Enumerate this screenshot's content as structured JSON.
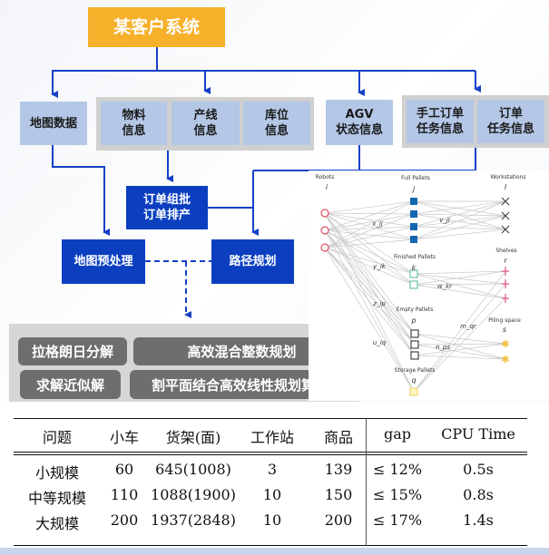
{
  "title": "某客户系统",
  "colors": {
    "title_bg": "#f6b02a",
    "light_box": "#b4c7e7",
    "dark_box": "#0b3fc0",
    "arrow": "#1540c8",
    "button": "#6e6e6e"
  },
  "sources": {
    "map_data": "地图数据",
    "material": "物料\n信息",
    "production_line": "产线\n信息",
    "storage_location": "库位\n信息",
    "agv": "AGV\n状态信息",
    "manual_order": "手工订单\n任务信息",
    "order": "订单\n任务信息"
  },
  "process": {
    "order_batching": "订单组批\n订单排产",
    "map_preprocess": "地图预处理",
    "path_planning": "路径规划"
  },
  "methods": [
    "拉格朗日分解",
    "高效混合整数规划",
    "求解近似解",
    "割平面结合高效线性规划算法"
  ],
  "network": {
    "groups": {
      "robots": {
        "label": "Robots",
        "index": "i"
      },
      "full_pallets": {
        "label": "Full Pallets",
        "index": "j"
      },
      "workstations": {
        "label": "Workstations",
        "index": "l"
      },
      "finished_pallets": {
        "label": "Finished Pallets",
        "index": "k"
      },
      "shelves": {
        "label": "Shelves",
        "index": "r"
      },
      "empty_pallets": {
        "label": "Empty Pallets",
        "index": "p"
      },
      "piling_space": {
        "label": "Piling space",
        "index": "s"
      },
      "storage_pallets": {
        "label": "Storage Pallets",
        "index": "q"
      }
    },
    "edge_labels": {
      "x": "x_ij",
      "v": "v_jl",
      "y": "y_ik",
      "w": "w_kr",
      "z": "z_ip",
      "u": "u_iq",
      "m": "m_qr",
      "n": "n_ps"
    }
  },
  "table": {
    "headers": [
      "问题",
      "小车",
      "货架(面)",
      "工作站",
      "商品",
      "gap",
      "CPU Time"
    ],
    "rows": [
      [
        "小规模",
        "60",
        "645(1008)",
        "3",
        "139",
        "≤ 12%",
        "0.5s"
      ],
      [
        "中等规模",
        "110",
        "1088(1900)",
        "10",
        "150",
        "≤ 15%",
        "0.8s"
      ],
      [
        "大规模",
        "200",
        "1937(2848)",
        "10",
        "200",
        "≤ 17%",
        "1.4s"
      ]
    ]
  }
}
